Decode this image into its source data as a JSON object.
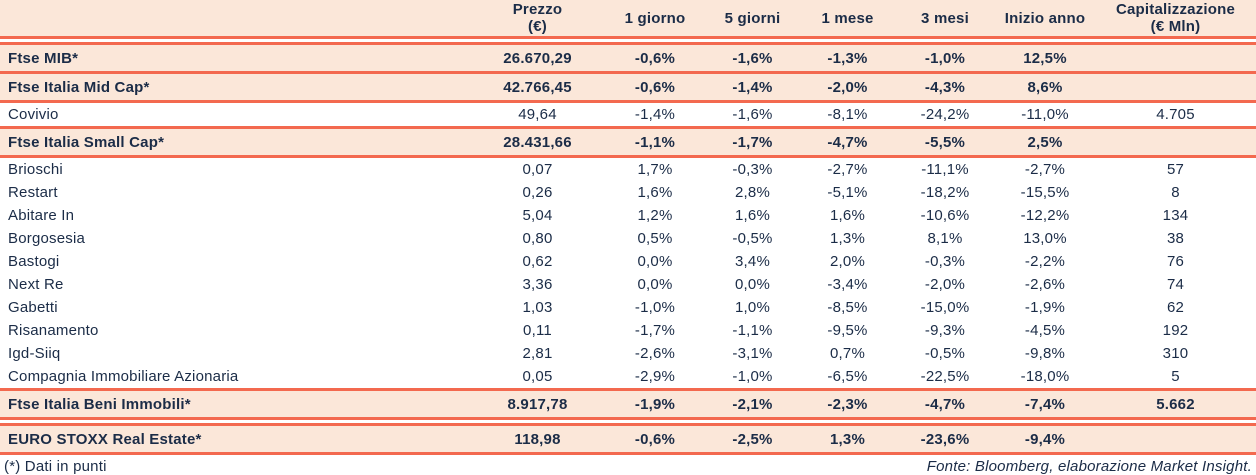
{
  "colors": {
    "accent_line": "#f3694f",
    "row_highlight": "#fbe7d9",
    "text": "#1b2c47"
  },
  "table": {
    "header": [
      "",
      "Prezzo\n(€)",
      "1 giorno",
      "5 giorni",
      "1 mese",
      "3 mesi",
      "Inizio anno",
      "Capitalizzazione\n(€ Mln)"
    ],
    "rows": [
      {
        "cells": [
          "Ftse MIB*",
          "26.670,29",
          "-0,6%",
          "-1,6%",
          "-1,3%",
          "-1,0%",
          "12,5%",
          ""
        ]
      },
      {
        "cells": [
          "Ftse Italia Mid Cap*",
          "42.766,45",
          "-0,6%",
          "-1,4%",
          "-2,0%",
          "-4,3%",
          "8,6%",
          ""
        ]
      },
      {
        "cells": [
          "Covivio",
          "49,64",
          "-1,4%",
          "-1,6%",
          "-8,1%",
          "-24,2%",
          "-11,0%",
          "4.705"
        ]
      },
      {
        "cells": [
          "Ftse Italia Small Cap*",
          "28.431,66",
          "-1,1%",
          "-1,7%",
          "-4,7%",
          "-5,5%",
          "2,5%",
          ""
        ]
      },
      {
        "cells": [
          "Brioschi",
          "0,07",
          "1,7%",
          "-0,3%",
          "-2,7%",
          "-11,1%",
          "-2,7%",
          "57"
        ]
      },
      {
        "cells": [
          "Restart",
          "0,26",
          "1,6%",
          "2,8%",
          "-5,1%",
          "-18,2%",
          "-15,5%",
          "8"
        ]
      },
      {
        "cells": [
          "Abitare In",
          "5,04",
          "1,2%",
          "1,6%",
          "1,6%",
          "-10,6%",
          "-12,2%",
          "134"
        ]
      },
      {
        "cells": [
          "Borgosesia",
          "0,80",
          "0,5%",
          "-0,5%",
          "1,3%",
          "8,1%",
          "13,0%",
          "38"
        ]
      },
      {
        "cells": [
          "Bastogi",
          "0,62",
          "0,0%",
          "3,4%",
          "2,0%",
          "-0,3%",
          "-2,2%",
          "76"
        ]
      },
      {
        "cells": [
          "Next Re",
          "3,36",
          "0,0%",
          "0,0%",
          "-3,4%",
          "-2,0%",
          "-2,6%",
          "74"
        ]
      },
      {
        "cells": [
          "Gabetti",
          "1,03",
          "-1,0%",
          "1,0%",
          "-8,5%",
          "-15,0%",
          "-1,9%",
          "62"
        ]
      },
      {
        "cells": [
          "Risanamento",
          "0,11",
          "-1,7%",
          "-1,1%",
          "-9,5%",
          "-9,3%",
          "-4,5%",
          "192"
        ]
      },
      {
        "cells": [
          "Igd-Siiq",
          "2,81",
          "-2,6%",
          "-3,1%",
          "0,7%",
          "-0,5%",
          "-9,8%",
          "310"
        ]
      },
      {
        "cells": [
          "Compagnia Immobiliare Azionaria",
          "0,05",
          "-2,9%",
          "-1,0%",
          "-6,5%",
          "-22,5%",
          "-18,0%",
          "5"
        ]
      },
      {
        "cells": [
          "Ftse Italia Beni Immobili*",
          "8.917,78",
          "-1,9%",
          "-2,1%",
          "-2,3%",
          "-4,7%",
          "-7,4%",
          "5.662"
        ]
      },
      {
        "cells": [
          "EURO STOXX Real Estate*",
          "118,98",
          "-0,6%",
          "-2,5%",
          "1,3%",
          "-23,6%",
          "-9,4%",
          ""
        ]
      }
    ]
  },
  "footer": {
    "note": "(*) Dati in punti",
    "source": "Fonte: Bloomberg, elaborazione Market Insight."
  }
}
